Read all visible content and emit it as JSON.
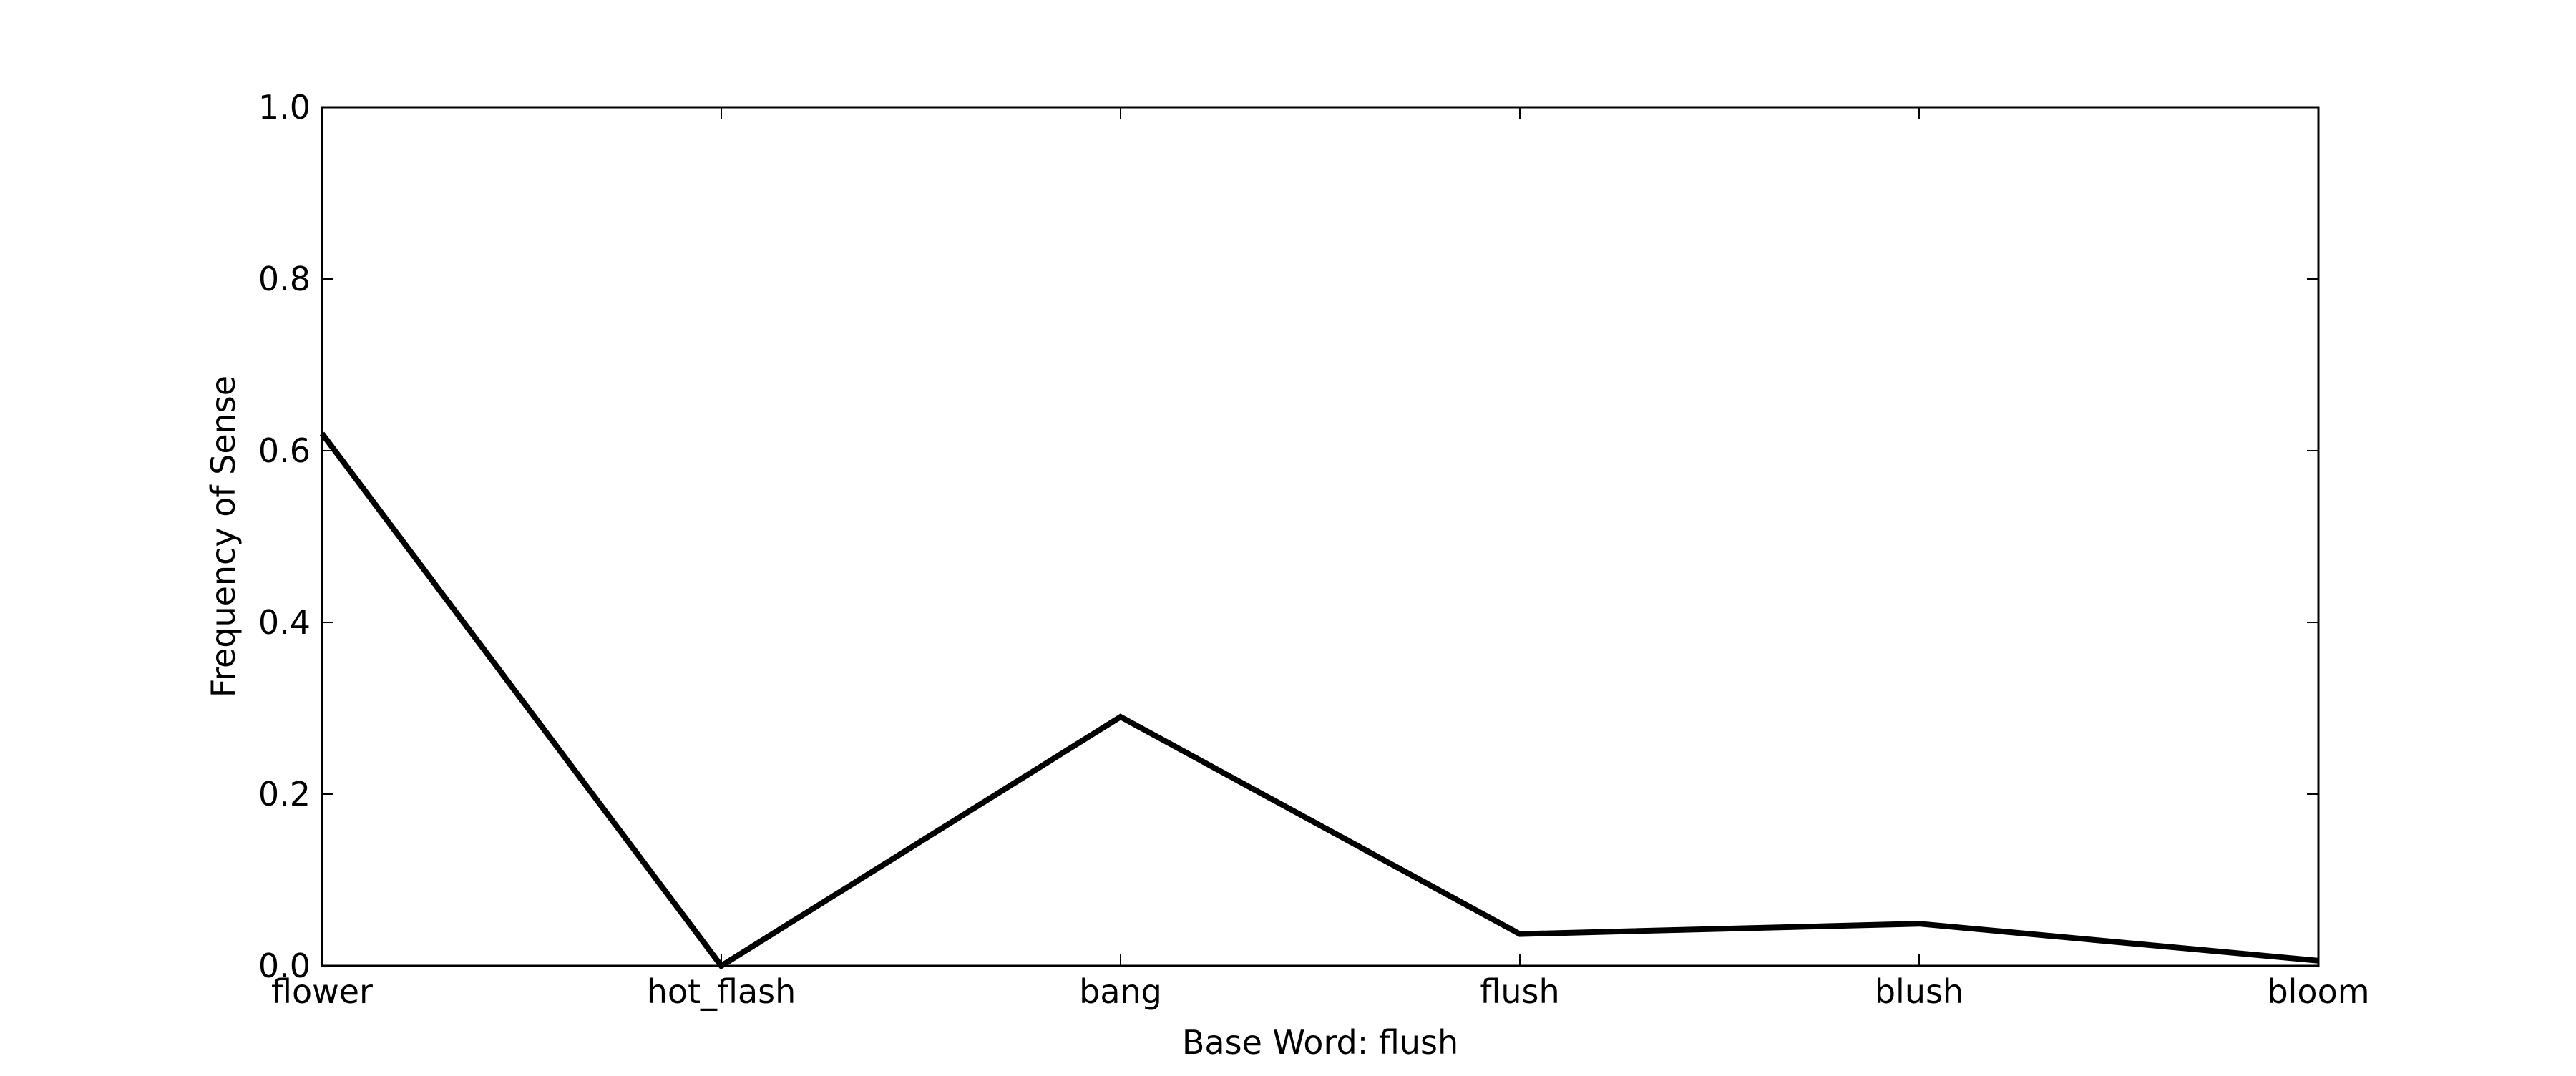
{
  "chart_data": {
    "type": "line",
    "title": "",
    "xlabel": "Base Word: flush",
    "ylabel": "Frequency of Sense",
    "categories": [
      "flower",
      "hot_flash",
      "bang",
      "flush",
      "blush",
      "bloom"
    ],
    "series": [
      {
        "values": [
          0.62,
          0.0,
          0.29,
          0.037,
          0.049,
          0.006
        ]
      }
    ],
    "ylim": [
      0.0,
      1.0
    ],
    "yticks": [
      "0.0",
      "0.2",
      "0.4",
      "0.6",
      "0.8",
      "1.0"
    ],
    "grid": false,
    "legend": "none",
    "line_color": "#000000"
  }
}
